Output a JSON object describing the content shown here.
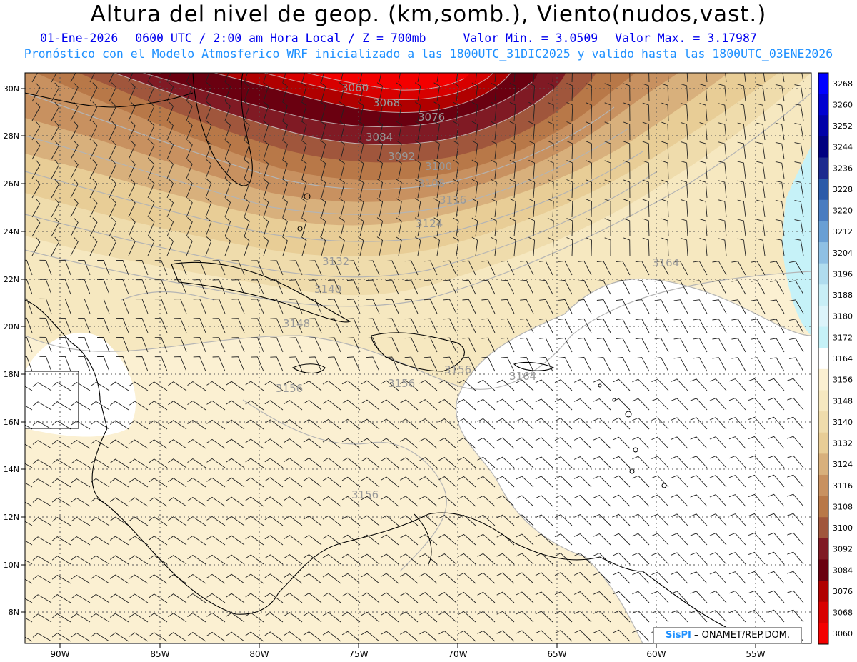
{
  "header": {
    "title": "Altura del nivel de geop. (km,somb.), Viento(nudos,vast.)",
    "date": "01-Ene-2026",
    "time": "0600 UTC / 2:00 am Hora Local / Z = 700mb",
    "min_value": "Valor Min. = 3.0509",
    "max_value": "Valor Max. = 3.17987",
    "model_line": "Pronóstico con el Modelo Atmosferico WRF inicializado a las 1800UTC_31DIC2025 y valido hasta las  1800UTC_03ENE2026"
  },
  "map": {
    "lon_labels": [
      "90W",
      "85W",
      "80W",
      "75W",
      "70W",
      "65W",
      "60W",
      "55W"
    ],
    "lat_labels": [
      "30N",
      "28N",
      "26N",
      "24N",
      "22N",
      "20N",
      "18N",
      "16N",
      "14N",
      "12N",
      "10N",
      "8N"
    ],
    "contour_labels": [
      "3060",
      "3068",
      "3076",
      "3084",
      "3092",
      "3100",
      "3108",
      "3116",
      "3124",
      "3132",
      "3140",
      "3148",
      "3156",
      "3156",
      "3156",
      "3156",
      "3164",
      "3164"
    ]
  },
  "colorbar": {
    "levels": [
      "3268",
      "3260",
      "3252",
      "3244",
      "3236",
      "3228",
      "3220",
      "3212",
      "3204",
      "3196",
      "3188",
      "3180",
      "3172",
      "3164",
      "3156",
      "3148",
      "3140",
      "3132",
      "3124",
      "3116",
      "3108",
      "3100",
      "3092",
      "3084",
      "3076",
      "3068",
      "3060"
    ],
    "colors": [
      "#0000ff",
      "#0000d0",
      "#0000a8",
      "#000080",
      "#1c2a8e",
      "#2c5aa8",
      "#4a7cc0",
      "#6a9fd4",
      "#8fc0e4",
      "#b0dcee",
      "#c8eef6",
      "#dcf4fa",
      "#c6f2f8",
      "#ffffff",
      "#fbf0d2",
      "#f6e8c0",
      "#efdcac",
      "#e8cd96",
      "#d8b07c",
      "#c89160",
      "#b87848",
      "#a0563c",
      "#801a24",
      "#6a0010",
      "#b00000",
      "#d80000",
      "#f40000"
    ]
  },
  "credit": {
    "brand": "SisPI",
    "text": "– ONAMET/REP.DOM."
  }
}
